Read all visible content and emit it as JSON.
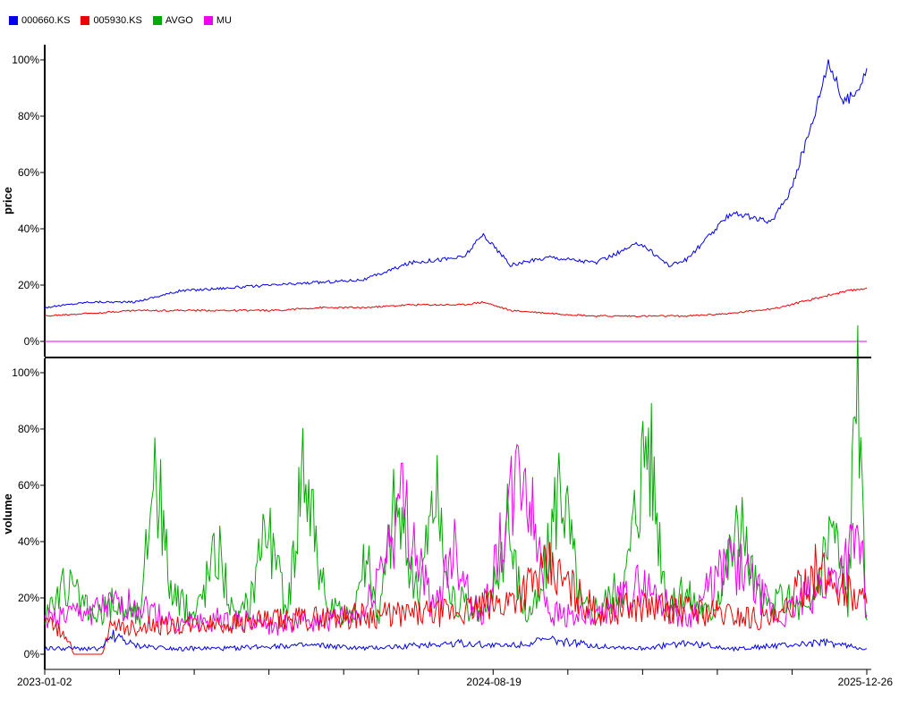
{
  "legend": [
    {
      "name": "000660.KS",
      "color": "#0000ee"
    },
    {
      "name": "005930.KS",
      "color": "#ee0000"
    },
    {
      "name": "AVGO",
      "color": "#00aa00"
    },
    {
      "name": "MU",
      "color": "#ee00ee"
    }
  ],
  "chart_data": [
    {
      "type": "line",
      "ylabel": "price",
      "ylim": [
        0,
        100
      ],
      "yticks": [
        "0%",
        "20%",
        "40%",
        "60%",
        "80%",
        "100%"
      ],
      "x_domain": [
        "2023-01-02",
        "2025-12-26"
      ],
      "series": [
        {
          "name": "000660.KS",
          "color": "#0000ee",
          "x": [
            "2023-01-02",
            "2023-03-01",
            "2023-05-01",
            "2023-07-01",
            "2023-09-01",
            "2023-11-01",
            "2024-01-02",
            "2024-03-01",
            "2024-05-01",
            "2024-07-10",
            "2024-08-05",
            "2024-09-10",
            "2024-11-01",
            "2025-01-02",
            "2025-03-01",
            "2025-04-08",
            "2025-05-01",
            "2025-07-01",
            "2025-08-20",
            "2025-09-15",
            "2025-10-15",
            "2025-11-05",
            "2025-11-25",
            "2025-12-10",
            "2025-12-26"
          ],
          "values": [
            12,
            14,
            14,
            18,
            19,
            20,
            21,
            22,
            28,
            30,
            38,
            27,
            30,
            28,
            35,
            27,
            29,
            46,
            42,
            53,
            78,
            100,
            85,
            88,
            97
          ]
        },
        {
          "name": "005930.KS",
          "color": "#ee0000",
          "x": [
            "2023-01-02",
            "2023-03-01",
            "2023-05-01",
            "2023-07-01",
            "2023-09-01",
            "2023-11-01",
            "2024-01-02",
            "2024-03-01",
            "2024-05-01",
            "2024-07-10",
            "2024-08-05",
            "2024-09-10",
            "2024-11-01",
            "2025-01-02",
            "2025-03-01",
            "2025-05-01",
            "2025-07-01",
            "2025-09-01",
            "2025-10-15",
            "2025-11-15",
            "2025-12-26"
          ],
          "values": [
            9,
            10,
            11,
            11,
            11,
            11,
            12,
            12,
            13,
            13,
            14,
            11,
            10,
            9,
            9,
            9,
            10,
            12,
            15,
            17,
            19
          ]
        },
        {
          "name": "AVGO",
          "color": "#00aa00",
          "x": [
            "2023-01-02",
            "2025-12-26"
          ],
          "values": [
            0,
            0
          ]
        },
        {
          "name": "MU",
          "color": "#ee00ee",
          "x": [
            "2023-01-02",
            "2025-12-26"
          ],
          "values": [
            0,
            0
          ]
        }
      ]
    },
    {
      "type": "line",
      "ylabel": "volume",
      "ylim": [
        0,
        100
      ],
      "yticks": [
        "0%",
        "20%",
        "40%",
        "60%",
        "80%",
        "100%"
      ],
      "x_domain": [
        "2023-01-02",
        "2025-12-26"
      ],
      "xticks": [
        "2023-01-02",
        "2024-08-19",
        "2025-12-26"
      ],
      "series": [
        {
          "name": "AVGO",
          "color": "#00aa00",
          "x": [
            "2023-01-02",
            "2023-02-01",
            "2023-03-10",
            "2023-04-01",
            "2023-05-10",
            "2023-05-26",
            "2023-06-20",
            "2023-07-20",
            "2023-08-20",
            "2023-09-10",
            "2023-10-01",
            "2023-10-20",
            "2023-11-20",
            "2023-12-10",
            "2024-01-10",
            "2024-02-10",
            "2024-03-01",
            "2024-03-20",
            "2024-04-10",
            "2024-05-10",
            "2024-06-03",
            "2024-06-20",
            "2024-07-15",
            "2024-08-10",
            "2024-09-06",
            "2024-09-30",
            "2024-10-20",
            "2024-11-15",
            "2024-12-13",
            "2025-01-10",
            "2025-02-10",
            "2025-03-10",
            "2025-04-07",
            "2025-04-30",
            "2025-06-01",
            "2025-07-10",
            "2025-08-10",
            "2025-09-12",
            "2025-10-10",
            "2025-11-10",
            "2025-12-01",
            "2025-12-12",
            "2025-12-26"
          ],
          "values": [
            15,
            25,
            12,
            18,
            14,
            73,
            20,
            14,
            40,
            12,
            18,
            50,
            14,
            74,
            16,
            13,
            35,
            14,
            56,
            20,
            60,
            22,
            16,
            15,
            45,
            14,
            20,
            66,
            16,
            18,
            28,
            83,
            16,
            22,
            14,
            46,
            16,
            20,
            14,
            49,
            18,
            100,
            12
          ]
        },
        {
          "name": "MU",
          "color": "#ee00ee",
          "x": [
            "2023-01-02",
            "2023-03-01",
            "2023-05-01",
            "2023-07-01",
            "2023-09-01",
            "2023-11-01",
            "2024-01-02",
            "2024-03-01",
            "2024-04-20",
            "2024-06-01",
            "2024-06-26",
            "2024-08-01",
            "2024-09-26",
            "2024-11-01",
            "2025-01-02",
            "2025-03-01",
            "2025-05-01",
            "2025-07-01",
            "2025-09-01",
            "2025-10-15",
            "2025-11-15",
            "2025-12-17",
            "2025-12-26"
          ],
          "values": [
            12,
            15,
            18,
            10,
            13,
            10,
            12,
            14,
            55,
            14,
            40,
            12,
            67,
            15,
            12,
            25,
            12,
            34,
            12,
            22,
            28,
            42,
            14
          ]
        },
        {
          "name": "005930.KS",
          "color": "#ee0000",
          "x": [
            "2023-01-02",
            "2023-02-01",
            "2023-02-10",
            "2023-03-20",
            "2023-03-28",
            "2023-05-01",
            "2023-07-01",
            "2023-09-01",
            "2023-11-01",
            "2024-01-02",
            "2024-03-01",
            "2024-05-01",
            "2024-07-01",
            "2024-09-01",
            "2024-11-01",
            "2025-01-02",
            "2025-03-01",
            "2025-05-01",
            "2025-07-01",
            "2025-09-01",
            "2025-10-15",
            "2025-11-15",
            "2025-12-26"
          ],
          "values": [
            12,
            6,
            0,
            0,
            9,
            10,
            10,
            11,
            12,
            13,
            14,
            14,
            15,
            18,
            30,
            15,
            17,
            16,
            14,
            12,
            30,
            25,
            18
          ]
        },
        {
          "name": "000660.KS",
          "color": "#0000ee",
          "x": [
            "2023-01-02",
            "2023-03-20",
            "2023-04-01",
            "2023-05-01",
            "2023-07-01",
            "2023-09-01",
            "2023-11-01",
            "2024-01-02",
            "2024-03-01",
            "2024-05-01",
            "2024-07-01",
            "2024-09-01",
            "2024-11-01",
            "2025-01-02",
            "2025-03-01",
            "2025-05-01",
            "2025-07-01",
            "2025-09-01",
            "2025-11-01",
            "2025-12-26"
          ],
          "values": [
            2,
            2,
            7,
            3,
            2,
            2,
            3,
            3,
            2,
            3,
            4,
            3,
            5,
            3,
            2,
            4,
            2,
            3,
            4,
            2
          ]
        }
      ]
    }
  ]
}
